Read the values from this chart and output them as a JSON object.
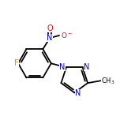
{
  "bg_color": "#ffffff",
  "bond_color": "#000000",
  "atom_colors": {
    "C": "#000000",
    "N": "#0000cc",
    "O": "#ff0000",
    "F": "#ff8800"
  },
  "bond_width": 1.3,
  "font_size": 7.5,
  "figsize": [
    1.52,
    1.52
  ],
  "dpi": 100,
  "xlim": [
    0.05,
    1.47
  ],
  "ylim": [
    0.2,
    1.35
  ]
}
